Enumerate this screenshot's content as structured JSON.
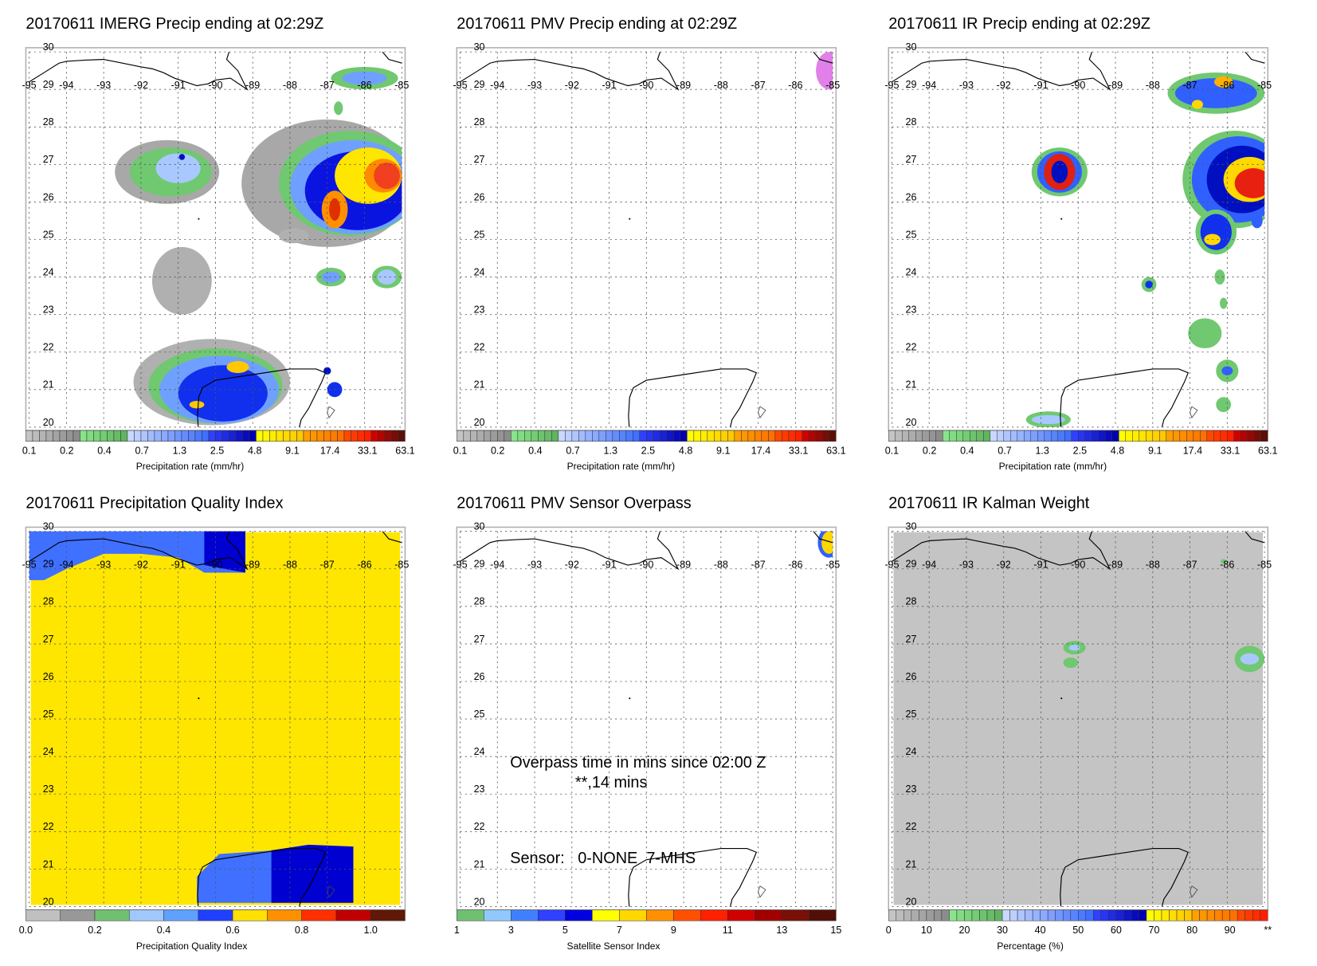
{
  "panels": [
    {
      "title": "20170611 IMERG Precip ending at 02:29Z",
      "colorbar_label": "Precipitation rate (mm/hr)",
      "colorbar": "precip",
      "background": null,
      "field": [
        [
          -87.0,
          26.5,
          2.3,
          1.7,
          "#a8a8a8"
        ],
        [
          -86.4,
          26.5,
          1.9,
          1.4,
          "#70c870"
        ],
        [
          -86.3,
          26.4,
          1.7,
          1.25,
          "#6fa0ff"
        ],
        [
          -86.2,
          26.3,
          1.4,
          1.05,
          "#0a14e0"
        ],
        [
          -85.9,
          26.7,
          0.9,
          0.75,
          "#ffe600"
        ],
        [
          -85.5,
          26.7,
          0.5,
          0.45,
          "#ff8a00"
        ],
        [
          -85.4,
          26.7,
          0.35,
          0.35,
          "#f04020"
        ],
        [
          -86.8,
          25.8,
          0.35,
          0.5,
          "#ff9000"
        ],
        [
          -86.8,
          25.8,
          0.15,
          0.3,
          "#e03000"
        ],
        [
          -91.3,
          26.8,
          1.4,
          0.85,
          "#a8a8a8"
        ],
        [
          -91.2,
          26.8,
          1.1,
          0.65,
          "#70c870"
        ],
        [
          -91.0,
          26.9,
          0.6,
          0.4,
          "#a8c8ff"
        ],
        [
          -90.9,
          27.2,
          0.08,
          0.08,
          "#0010c0"
        ],
        [
          -90.9,
          23.9,
          0.8,
          0.9,
          "#b0b0b0"
        ],
        [
          -87.9,
          25.1,
          0.4,
          0.2,
          "#b0b0b0"
        ],
        [
          -90.1,
          21.2,
          2.1,
          1.15,
          "#b0b0b0"
        ],
        [
          -90.0,
          21.1,
          1.8,
          1.0,
          "#70c870"
        ],
        [
          -89.9,
          21.0,
          1.6,
          0.9,
          "#70a0ff"
        ],
        [
          -89.8,
          20.9,
          1.2,
          0.75,
          "#1030ee"
        ],
        [
          -89.4,
          21.6,
          0.3,
          0.16,
          "#ffc800"
        ],
        [
          -90.5,
          20.6,
          0.2,
          0.1,
          "#ffc800"
        ],
        [
          -87.0,
          21.5,
          0.1,
          0.1,
          "#0010c0"
        ],
        [
          -86.8,
          21.0,
          0.2,
          0.2,
          "#1030ee"
        ],
        [
          -86.0,
          29.3,
          0.9,
          0.3,
          "#70c870"
        ],
        [
          -86.0,
          29.3,
          0.6,
          0.18,
          "#70a0ff"
        ],
        [
          -86.7,
          28.5,
          0.12,
          0.18,
          "#70c870"
        ],
        [
          -86.9,
          24.0,
          0.4,
          0.25,
          "#70c870"
        ],
        [
          -86.9,
          24.0,
          0.25,
          0.15,
          "#70a0ff"
        ],
        [
          -85.4,
          24.0,
          0.4,
          0.3,
          "#70c870"
        ],
        [
          -85.4,
          24.0,
          0.25,
          0.2,
          "#a8c8ff"
        ]
      ],
      "polygons": []
    },
    {
      "title": "20170611 PMV Precip ending at 02:29Z",
      "colorbar_label": "Precipitation rate (mm/hr)",
      "colorbar": "precip",
      "background": null,
      "field": [
        [
          -85.1,
          29.5,
          0.35,
          0.5,
          "#e080e8"
        ]
      ],
      "polygons": []
    },
    {
      "title": "20170611 IR Precip ending at 02:29Z",
      "colorbar_label": "Precipitation rate (mm/hr)",
      "colorbar": "precip",
      "background": null,
      "field": [
        [
          -90.5,
          26.8,
          0.75,
          0.65,
          "#70c870"
        ],
        [
          -90.5,
          26.8,
          0.6,
          0.55,
          "#3060ff"
        ],
        [
          -90.5,
          26.8,
          0.42,
          0.48,
          "#e02010"
        ],
        [
          -90.5,
          26.8,
          0.22,
          0.3,
          "#0010c0"
        ],
        [
          -85.8,
          26.6,
          1.4,
          1.3,
          "#70c870"
        ],
        [
          -85.7,
          26.6,
          1.25,
          1.15,
          "#3060ff"
        ],
        [
          -85.6,
          26.6,
          0.95,
          0.9,
          "#0010c0"
        ],
        [
          -85.4,
          26.6,
          0.7,
          0.6,
          "#ffd800"
        ],
        [
          -85.3,
          26.5,
          0.5,
          0.4,
          "#e82010"
        ],
        [
          -86.3,
          28.9,
          1.3,
          0.55,
          "#70c870"
        ],
        [
          -86.3,
          28.9,
          1.1,
          0.4,
          "#3060ff"
        ],
        [
          -86.1,
          29.2,
          0.25,
          0.15,
          "#ffb000"
        ],
        [
          -86.8,
          28.6,
          0.15,
          0.12,
          "#ffd800"
        ],
        [
          -86.3,
          25.2,
          0.55,
          0.6,
          "#70c870"
        ],
        [
          -86.3,
          25.2,
          0.42,
          0.48,
          "#1030ee"
        ],
        [
          -86.4,
          25.0,
          0.22,
          0.15,
          "#ffd800"
        ],
        [
          -88.1,
          23.8,
          0.2,
          0.2,
          "#70c870"
        ],
        [
          -88.1,
          23.8,
          0.1,
          0.1,
          "#1030ee"
        ],
        [
          -86.2,
          24.0,
          0.14,
          0.2,
          "#70c870"
        ],
        [
          -86.1,
          23.3,
          0.1,
          0.15,
          "#70c870"
        ],
        [
          -86.6,
          22.5,
          0.45,
          0.4,
          "#70c870"
        ],
        [
          -86.0,
          21.5,
          0.3,
          0.3,
          "#70c870"
        ],
        [
          -86.0,
          21.5,
          0.15,
          0.12,
          "#3060ff"
        ],
        [
          -86.1,
          20.6,
          0.2,
          0.2,
          "#70c870"
        ],
        [
          -85.2,
          25.5,
          0.15,
          0.2,
          "#3060ff"
        ],
        [
          -90.8,
          20.2,
          0.6,
          0.22,
          "#70c870"
        ],
        [
          -90.8,
          20.2,
          0.45,
          0.12,
          "#a8c8ff"
        ]
      ],
      "polygons": []
    },
    {
      "title": "20170611 Precipitation Quality Index",
      "colorbar_label": "Precipitation Quality Index",
      "colorbar": "quality",
      "background": "#ffe600",
      "field": [],
      "polygons": [
        {
          "color": "#4070ff",
          "points": [
            [
              -95,
              30.2
            ],
            [
              -89.2,
              30.2
            ],
            [
              -89.2,
              28.9
            ],
            [
              -90.3,
              28.9
            ],
            [
              -91,
              29.3
            ],
            [
              -92,
              29.4
            ],
            [
              -93,
              29.4
            ],
            [
              -94,
              29.0
            ],
            [
              -94.6,
              28.7
            ],
            [
              -95,
              28.7
            ]
          ]
        },
        {
          "color": "#0000d0",
          "points": [
            [
              -90.3,
              30.2
            ],
            [
              -89.2,
              30.2
            ],
            [
              -89.2,
              28.9
            ],
            [
              -90.3,
              29.1
            ]
          ]
        },
        {
          "color": "#4070ff",
          "points": [
            [
              -90.5,
              20.1
            ],
            [
              -90.5,
              20.8
            ],
            [
              -89.9,
              21.4
            ],
            [
              -88.4,
              21.5
            ],
            [
              -88.4,
              20.1
            ]
          ]
        },
        {
          "color": "#0000d0",
          "points": [
            [
              -88.5,
              20.1
            ],
            [
              -88.5,
              21.5
            ],
            [
              -87.5,
              21.65
            ],
            [
              -86.3,
              21.6
            ],
            [
              -86.3,
              20.1
            ]
          ]
        }
      ]
    },
    {
      "title": "20170611 PMV Sensor Overpass",
      "colorbar_label": "Satellite Sensor Index",
      "colorbar": "sensor",
      "background": null,
      "field": [
        [
          -85.1,
          29.7,
          0.3,
          0.4,
          "#3060ff"
        ],
        [
          -85.1,
          29.7,
          0.2,
          0.3,
          "#ffd800"
        ]
      ],
      "polygons": [],
      "annotations": [
        "Overpass time in mins since 02:00 Z",
        "**,14 mins",
        "Sensor:   0-NONE  7-MHS"
      ]
    },
    {
      "title": "20170611 IR Kalman Weight",
      "colorbar_label": "Percentage (%)",
      "colorbar": "percent",
      "background": "#c4c4c4",
      "field": [
        [
          -90.1,
          26.9,
          0.3,
          0.18,
          "#70c870"
        ],
        [
          -90.1,
          26.9,
          0.15,
          0.08,
          "#a8c8ff"
        ],
        [
          -90.2,
          26.5,
          0.2,
          0.14,
          "#70c870"
        ],
        [
          -85.4,
          26.6,
          0.4,
          0.35,
          "#70c870"
        ],
        [
          -85.4,
          26.6,
          0.25,
          0.15,
          "#a8c8ff"
        ],
        [
          -86.1,
          29.2,
          0.08,
          0.06,
          "#70c870"
        ]
      ],
      "polygons": []
    }
  ],
  "map": {
    "lon_labels": [
      "-95",
      "-94",
      "-93",
      "-92",
      "-91",
      "-90",
      "-89",
      "-88",
      "-87",
      "-86",
      "-85"
    ],
    "lat_labels": [
      "30",
      "29",
      "28",
      "27",
      "26",
      "25",
      "24",
      "23",
      "22",
      "21",
      "20"
    ],
    "lon_range": [
      -95,
      -85
    ],
    "lat_range": [
      20,
      30
    ]
  },
  "colorbars": {
    "precip": {
      "ticks": [
        "0.1",
        "0.2",
        "0.4",
        "0.7",
        "1.3",
        "2.5",
        "4.8",
        "9.1",
        "17.4",
        "33.1",
        "63.1"
      ],
      "segments": [
        [
          "#c4c4c4",
          "#8c8c8c",
          8
        ],
        [
          "#88e488",
          "#60b460",
          7
        ],
        [
          "#c8d8ff",
          "#4070ff",
          12
        ],
        [
          "#3040ff",
          "#0000b0",
          7
        ],
        [
          "#ffff00",
          "#ffc800",
          7
        ],
        [
          "#ffa000",
          "#ff7000",
          6
        ],
        [
          "#ff4800",
          "#ff2000",
          4
        ],
        [
          "#d00000",
          "#5a1008",
          5
        ]
      ]
    },
    "quality": {
      "ticks": [
        "0.0",
        "0.2",
        "0.4",
        "0.6",
        "0.8",
        "1.0"
      ],
      "range": [
        0,
        1.1
      ],
      "segments": [
        [
          "#c0c0c0",
          "#c0c0c0",
          1
        ],
        [
          "#989898",
          "#989898",
          1
        ],
        [
          "#70c070",
          "#70c070",
          1
        ],
        [
          "#a0c8ff",
          "#a0c8ff",
          1
        ],
        [
          "#60a0ff",
          "#60a0ff",
          1
        ],
        [
          "#2040ff",
          "#2040ff",
          1
        ],
        [
          "#ffe000",
          "#ffe000",
          1
        ],
        [
          "#ff9000",
          "#ff9000",
          1
        ],
        [
          "#ff3000",
          "#ff3000",
          1
        ],
        [
          "#c00000",
          "#c00000",
          1
        ],
        [
          "#601808",
          "#601808",
          1
        ]
      ]
    },
    "sensor": {
      "ticks": [
        "1",
        "3",
        "5",
        "7",
        "9",
        "11",
        "13",
        "15"
      ],
      "range": [
        1,
        15
      ],
      "segments": [
        [
          "#70c070",
          "#70c070",
          1
        ],
        [
          "#90c8ff",
          "#90c8ff",
          1
        ],
        [
          "#4080ff",
          "#4080ff",
          1
        ],
        [
          "#3040ff",
          "#3040ff",
          1
        ],
        [
          "#0000e0",
          "#0000e0",
          1
        ],
        [
          "#ffff00",
          "#ffff00",
          1
        ],
        [
          "#ffd800",
          "#ffd800",
          1
        ],
        [
          "#ff9000",
          "#ff9000",
          1
        ],
        [
          "#ff5000",
          "#ff5000",
          1
        ],
        [
          "#ff2000",
          "#ff2000",
          1
        ],
        [
          "#d00000",
          "#d00000",
          1
        ],
        [
          "#a00000",
          "#a00000",
          1
        ],
        [
          "#781008",
          "#781008",
          1
        ],
        [
          "#501008",
          "#501008",
          1
        ]
      ]
    },
    "percent": {
      "ticks": [
        "0",
        "10",
        "20",
        "30",
        "40",
        "50",
        "60",
        "70",
        "80",
        "90",
        "**"
      ],
      "range": [
        0,
        100
      ],
      "segments": [
        [
          "#c4c4c4",
          "#8c8c8c",
          8
        ],
        [
          "#88e488",
          "#60b460",
          7
        ],
        [
          "#c8d8ff",
          "#4070ff",
          12
        ],
        [
          "#3040ff",
          "#0000b0",
          7
        ],
        [
          "#ffff00",
          "#ffc800",
          6
        ],
        [
          "#ffa000",
          "#ff7000",
          6
        ],
        [
          "#ff4800",
          "#ff2000",
          4
        ]
      ]
    }
  }
}
